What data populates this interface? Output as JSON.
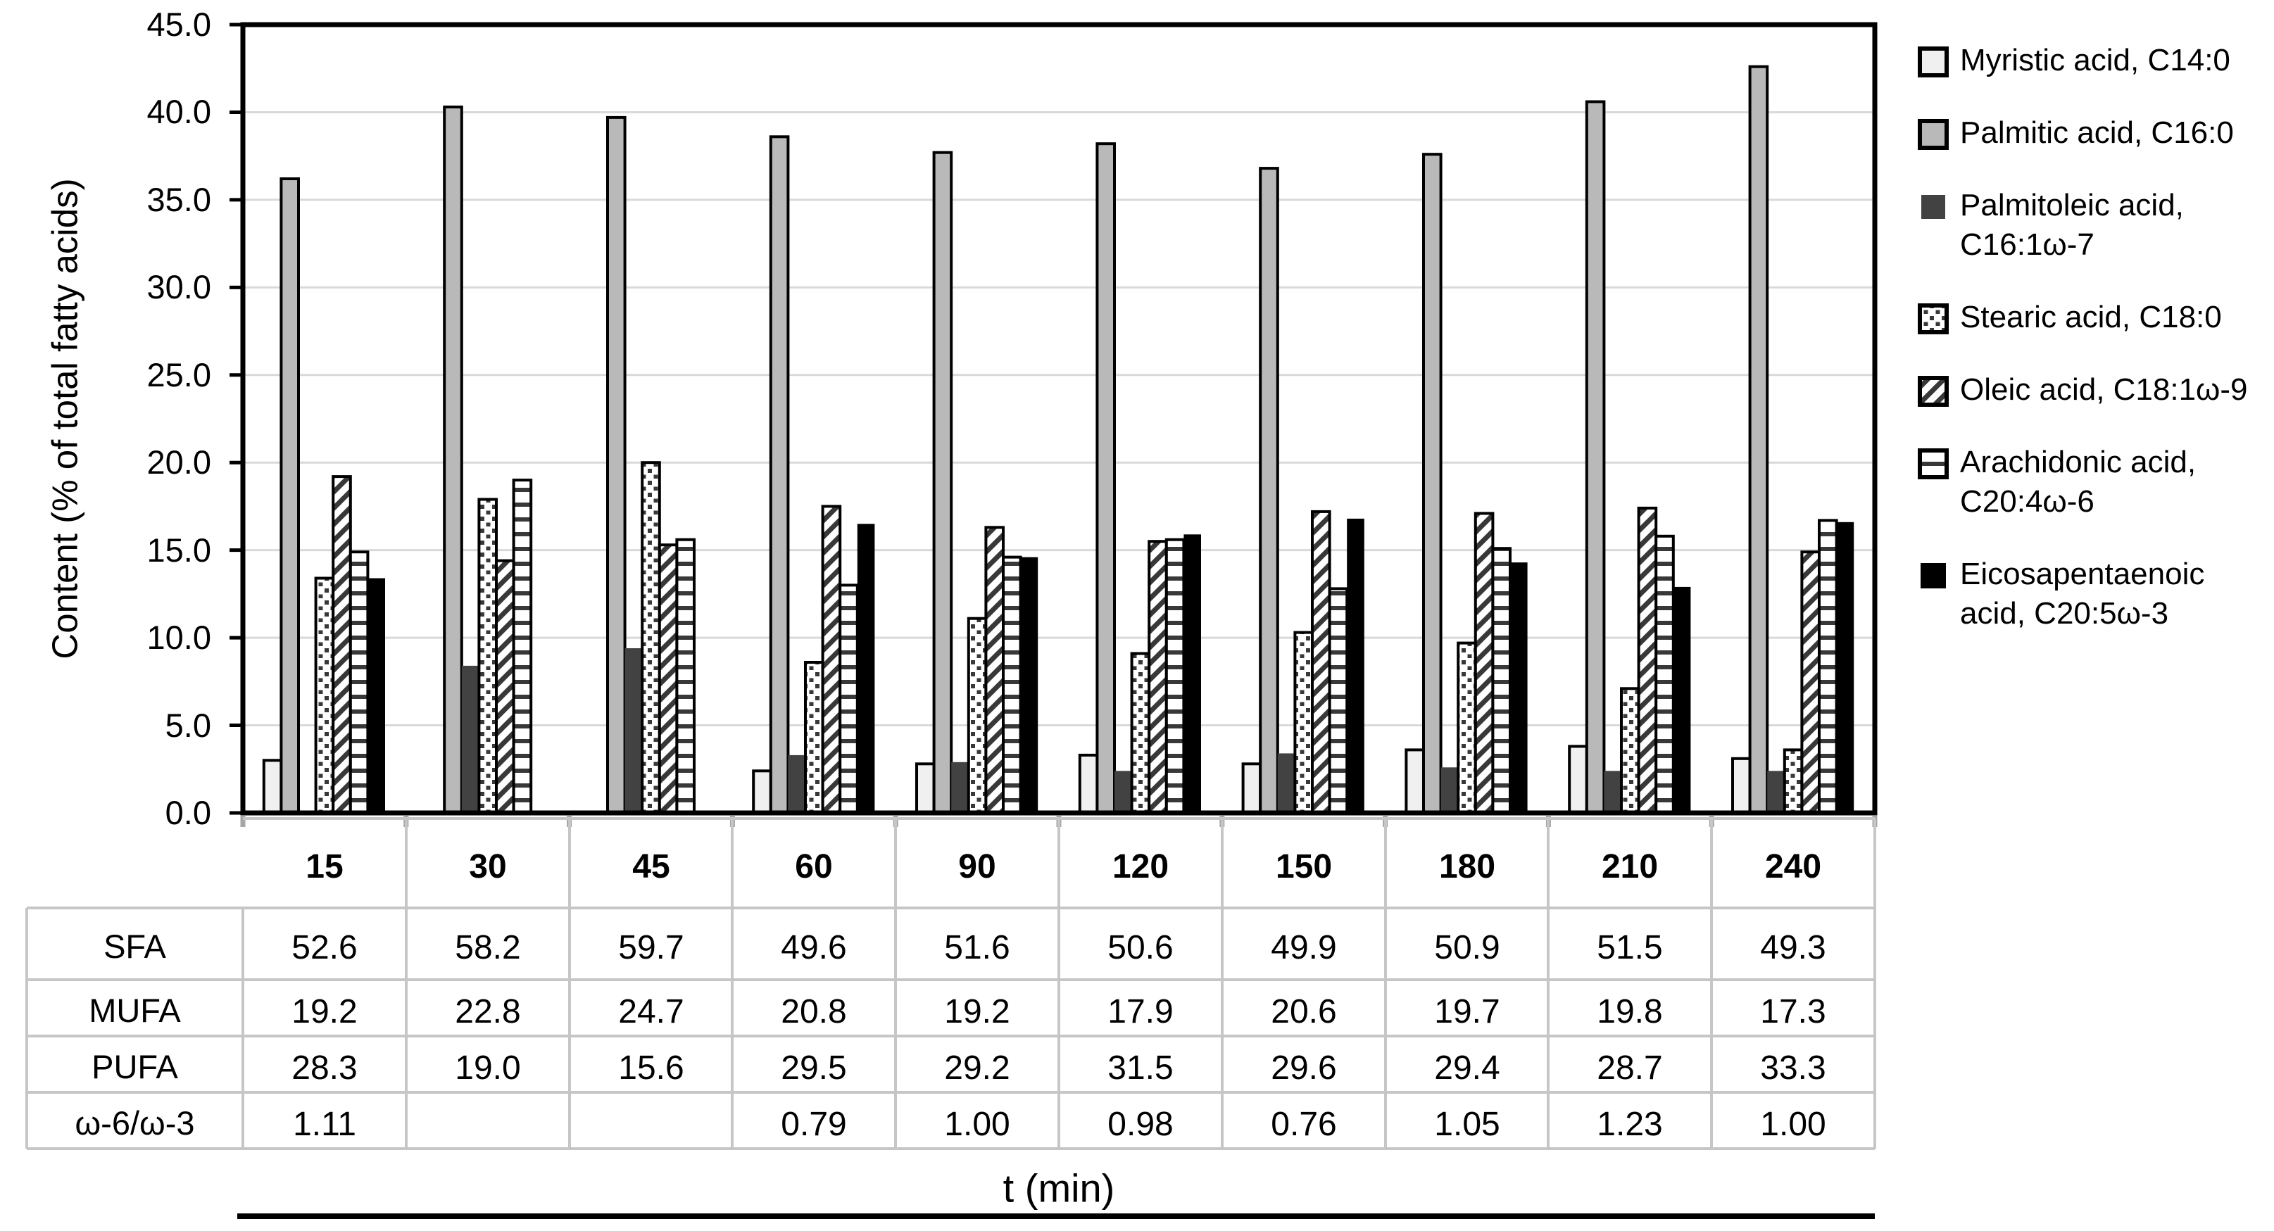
{
  "chart_data": {
    "type": "bar",
    "title": "",
    "xlabel": "t (min)",
    "ylabel": "Content (% of total fatty acids)",
    "ylim": [
      0,
      45
    ],
    "ytick_step": 5,
    "grid": true,
    "legend_position": "right",
    "categories": [
      15,
      30,
      45,
      60,
      90,
      120,
      150,
      180,
      210,
      240
    ],
    "series": [
      {
        "name": "Myristic acid, C14:0",
        "pattern": "light",
        "values": [
          3.0,
          0,
          0,
          2.4,
          2.8,
          3.3,
          2.8,
          3.6,
          3.8,
          3.1
        ]
      },
      {
        "name": "Palmitic acid, C16:0",
        "pattern": "gray",
        "values": [
          36.2,
          40.3,
          39.7,
          38.6,
          37.7,
          38.2,
          36.8,
          37.6,
          40.6,
          42.6
        ]
      },
      {
        "name": "Palmitoleic acid, C16:1ω-7",
        "pattern": "darkgray",
        "values": [
          0,
          8.4,
          9.4,
          3.3,
          2.9,
          2.4,
          3.4,
          2.6,
          2.4,
          2.4
        ]
      },
      {
        "name": "Stearic acid, C18:0",
        "pattern": "dots",
        "values": [
          13.4,
          17.9,
          20.0,
          8.6,
          11.1,
          9.1,
          10.3,
          9.7,
          7.1,
          3.6
        ]
      },
      {
        "name": "Oleic acid, C18:1ω-9",
        "pattern": "diagonal",
        "values": [
          19.2,
          14.4,
          15.3,
          17.5,
          16.3,
          15.5,
          17.2,
          17.1,
          17.4,
          14.9
        ]
      },
      {
        "name": "Arachidonic acid, C20:4ω-6",
        "pattern": "hlines",
        "values": [
          14.9,
          19.0,
          15.6,
          13.0,
          14.6,
          15.6,
          12.8,
          15.1,
          15.8,
          16.7
        ]
      },
      {
        "name": "Eicosapentaenoic acid, C20:5ω-3",
        "pattern": "black",
        "values": [
          13.4,
          0,
          0,
          16.5,
          14.6,
          15.9,
          16.8,
          14.3,
          12.9,
          16.6
        ]
      }
    ]
  },
  "table": {
    "column_headers": [
      "15",
      "30",
      "45",
      "60",
      "90",
      "120",
      "150",
      "180",
      "210",
      "240"
    ],
    "row_headers": [
      "SFA",
      "MUFA",
      "PUFA",
      "ω-6/ω-3"
    ],
    "rows": [
      [
        "52.6",
        "58.2",
        "59.7",
        "49.6",
        "51.6",
        "50.6",
        "49.9",
        "50.9",
        "51.5",
        "49.3"
      ],
      [
        "19.2",
        "22.8",
        "24.7",
        "20.8",
        "19.2",
        "17.9",
        "20.6",
        "19.7",
        "19.8",
        "17.3"
      ],
      [
        "28.3",
        "19.0",
        "15.6",
        "29.5",
        "29.2",
        "31.5",
        "29.6",
        "29.4",
        "28.7",
        "33.3"
      ],
      [
        "1.11",
        "",
        "",
        "0.79",
        "1.00",
        "0.98",
        "0.76",
        "1.05",
        "1.23",
        "1.00"
      ]
    ]
  },
  "colors": {
    "bar_border": "#000000",
    "light_fill": "#f0f0f0",
    "gray_fill": "#b9b9b9",
    "dark_fill": "#424242",
    "pattern_ink": "#383838",
    "black_fill": "#000000",
    "gridline": "#d9d9d9",
    "plot_border": "#000000",
    "table_border": "#c6c6c6",
    "x_minor_tick": "#a6a6a6"
  }
}
